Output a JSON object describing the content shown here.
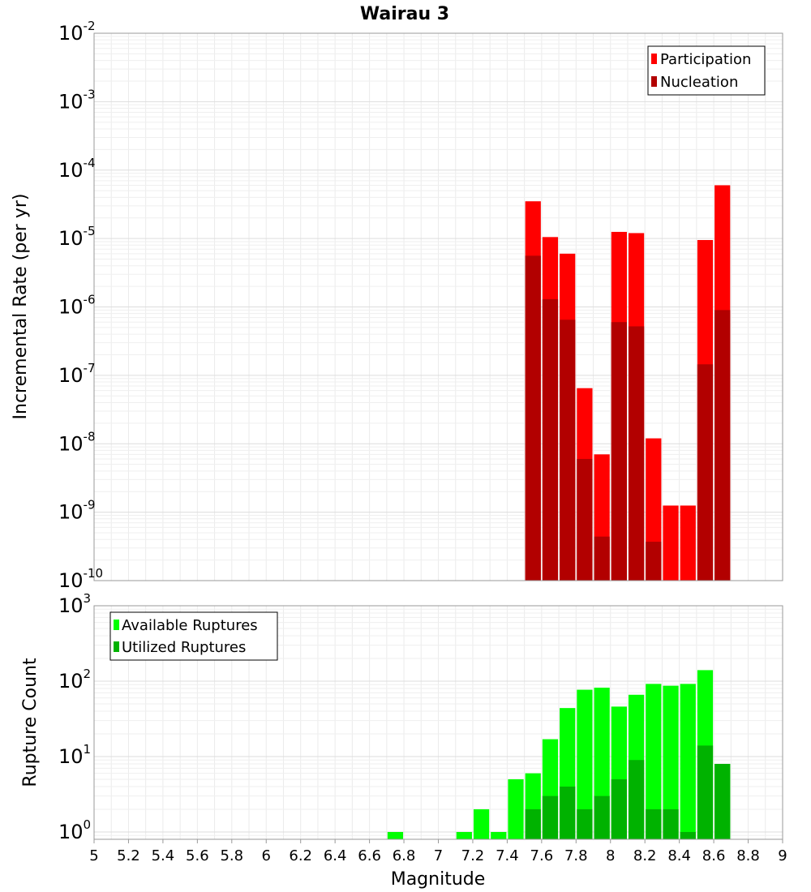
{
  "chart_data": [
    {
      "type": "bar",
      "title": "Wairau 3",
      "xlabel": "",
      "ylabel": "Incremental Rate (per yr)",
      "yscale": "log",
      "xlim": [
        5,
        9
      ],
      "ylim": [
        1e-10,
        0.01
      ],
      "yticks": [
        {
          "base": "10",
          "exp": "-10"
        },
        {
          "base": "10",
          "exp": "-9"
        },
        {
          "base": "10",
          "exp": "-8"
        },
        {
          "base": "10",
          "exp": "-7"
        },
        {
          "base": "10",
          "exp": "-6"
        },
        {
          "base": "10",
          "exp": "-5"
        },
        {
          "base": "10",
          "exp": "-4"
        },
        {
          "base": "10",
          "exp": "-3"
        },
        {
          "base": "10",
          "exp": "-2"
        }
      ],
      "grid": true,
      "legend_position": "top-right",
      "bar_width": 0.1,
      "series": [
        {
          "name": "Participation",
          "color": "#ff0000",
          "x": [
            7.55,
            7.65,
            7.75,
            7.85,
            7.95,
            8.05,
            8.15,
            8.25,
            8.35,
            8.45,
            8.55,
            8.65
          ],
          "values": [
            3.5e-05,
            1.05e-05,
            6e-06,
            6.5e-08,
            7e-09,
            1.25e-05,
            1.2e-05,
            1.2e-08,
            1.25e-09,
            1.25e-09,
            9.5e-06,
            6e-05
          ]
        },
        {
          "name": "Nucleation",
          "color": "#b20000",
          "x": [
            7.55,
            7.65,
            7.75,
            7.85,
            7.95,
            8.05,
            8.15,
            8.25,
            8.35,
            8.45,
            8.55,
            8.65
          ],
          "values": [
            5.6e-06,
            1.3e-06,
            6.5e-07,
            6e-09,
            4.4e-10,
            6e-07,
            5.2e-07,
            3.7e-10,
            0,
            0,
            1.45e-07,
            9e-07
          ]
        }
      ]
    },
    {
      "type": "bar",
      "title": "",
      "xlabel": "Magnitude",
      "ylabel": "Rupture Count",
      "yscale": "log",
      "xlim": [
        5,
        9
      ],
      "ylim": [
        0.8,
        1000
      ],
      "yticks": [
        {
          "base": "10",
          "exp": "0"
        },
        {
          "base": "10",
          "exp": "1"
        },
        {
          "base": "10",
          "exp": "2"
        },
        {
          "base": "10",
          "exp": "3"
        }
      ],
      "xticks": [
        "5",
        "5.2",
        "5.4",
        "5.6",
        "5.8",
        "6",
        "6.2",
        "6.4",
        "6.6",
        "6.8",
        "7",
        "7.2",
        "7.4",
        "7.6",
        "7.8",
        "8",
        "8.2",
        "8.4",
        "8.6",
        "8.8",
        "9"
      ],
      "grid": true,
      "legend_position": "top-left",
      "bar_width": 0.1,
      "series": [
        {
          "name": "Available Ruptures",
          "color": "#00ff00",
          "x": [
            6.75,
            7.15,
            7.25,
            7.35,
            7.45,
            7.55,
            7.65,
            7.75,
            7.85,
            7.95,
            8.05,
            8.15,
            8.25,
            8.35,
            8.45,
            8.55,
            8.65
          ],
          "values": [
            1,
            1,
            2,
            1,
            5,
            6,
            17,
            44,
            77,
            82,
            46,
            66,
            92,
            87,
            92,
            140,
            8
          ]
        },
        {
          "name": "Utilized Ruptures",
          "color": "#00b200",
          "x": [
            7.55,
            7.65,
            7.75,
            7.85,
            7.95,
            8.05,
            8.15,
            8.25,
            8.35,
            8.45,
            8.55,
            8.65
          ],
          "values": [
            2,
            3,
            4,
            2,
            3,
            5,
            9,
            2,
            2,
            1,
            14,
            8
          ]
        }
      ]
    }
  ]
}
